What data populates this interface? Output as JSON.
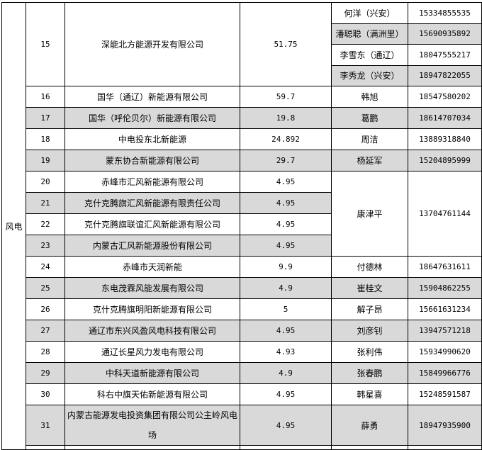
{
  "category": "风电",
  "rows": [
    {
      "no": "15",
      "company": "深能北方能源开发有限公司",
      "capacity": "51.75",
      "contacts": [
        {
          "name": "何洋（兴安）",
          "phone": "15334855535"
        },
        {
          "name": "潘聪聪（满洲里）",
          "phone": "15690935892"
        },
        {
          "name": "李雪东（通辽）",
          "phone": "18047555217"
        },
        {
          "name": "李秀龙（兴安）",
          "phone": "18947822055"
        }
      ]
    },
    {
      "no": "16",
      "company": "国华（通辽）新能源有限公司",
      "capacity": "59.7",
      "contact": "韩旭",
      "phone": "18547580202"
    },
    {
      "no": "17",
      "company": "国华（呼伦贝尔）新能源有限公司",
      "capacity": "19.8",
      "contact": "葛鹏",
      "phone": "18614707034"
    },
    {
      "no": "18",
      "company": "中电投东北新能源",
      "capacity": "24.892",
      "contact": "周洁",
      "phone": "13889318840"
    },
    {
      "no": "19",
      "company": "蒙东协合新能源有限公司",
      "capacity": "29.7",
      "contact": "杨延军",
      "phone": "15204895999"
    },
    {
      "no": "20",
      "company": "赤峰市汇风新能源有限公司",
      "capacity": "4.95",
      "contact": "康津平",
      "phone": "13704761144"
    },
    {
      "no": "21",
      "company": "克什克腾旗汇风新能源有限责任公司",
      "capacity": "4.95"
    },
    {
      "no": "22",
      "company": "克什克腾旗联谊汇风新能源有限公司",
      "capacity": "4.95"
    },
    {
      "no": "23",
      "company": "内蒙古汇风新能源股份有限公司",
      "capacity": "4.95"
    },
    {
      "no": "24",
      "company": "赤峰市天润新能",
      "capacity": "9.9",
      "contact": "付德林",
      "phone": "18647631611"
    },
    {
      "no": "25",
      "company": "东电茂霖风能发展有限公司",
      "capacity": "4.9",
      "contact": "崔桂文",
      "phone": "15904862255"
    },
    {
      "no": "26",
      "company": "克什克腾旗明阳新能源有限公司",
      "capacity": "5",
      "contact": "解子昂",
      "phone": "15661631234"
    },
    {
      "no": "27",
      "company": "通辽市东兴风盈风电科技有限公司",
      "capacity": "4.95",
      "contact": "刘彦钊",
      "phone": "13947571218"
    },
    {
      "no": "28",
      "company": "通辽长星风力发电有限公司",
      "capacity": "4.93",
      "contact": "张利伟",
      "phone": "15934990620"
    },
    {
      "no": "29",
      "company": "中科天道新能源有限公司",
      "capacity": "4.9",
      "contact": "张春鹏",
      "phone": "15849966776"
    },
    {
      "no": "30",
      "company": "科右中旗天佑新能源有限公司",
      "capacity": "4.95",
      "contact": "韩星喜",
      "phone": "15248591587"
    },
    {
      "no": "31",
      "company": "内蒙古能源发电投资集团有限公司公主岭风电场",
      "capacity": "4.95",
      "contact": "薛勇",
      "phone": "18947935900"
    }
  ],
  "colors": {
    "shade": "#d9d9d9",
    "border": "#000000"
  }
}
